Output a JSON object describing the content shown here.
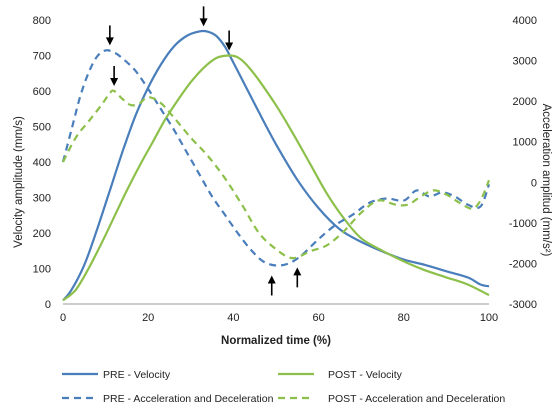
{
  "chart_data": {
    "type": "line",
    "xlabel": "Normalized time (%)",
    "ylabel_left": "Velocity amplitude (mm/s)",
    "ylabel_right": "Acceleration amplitud (mm/s²)",
    "x_ticks": [
      "0",
      "20",
      "40",
      "60",
      "80",
      "100"
    ],
    "y_left_ticks": [
      "0",
      "100",
      "200",
      "300",
      "400",
      "500",
      "600",
      "700",
      "800"
    ],
    "y_right_ticks": [
      "-3000",
      "-2000",
      "-1000",
      "0",
      "1000",
      "2000",
      "3000",
      "4000"
    ],
    "xlim": [
      0,
      100
    ],
    "ylim_left": [
      0,
      800
    ],
    "ylim_right": [
      -3000,
      4000
    ],
    "grid": false,
    "legend_position": "bottom",
    "colors": {
      "pre": "#4a7ebb",
      "post": "#8dc04a"
    },
    "series": [
      {
        "name": "PRE - Velocity",
        "axis": "left",
        "style": "solid",
        "color": "#4a7ebb",
        "x": [
          0,
          2,
          5,
          8,
          11,
          14,
          17,
          20,
          23,
          26,
          29,
          32,
          34,
          36,
          38,
          40,
          43,
          46,
          50,
          55,
          60,
          65,
          70,
          75,
          80,
          85,
          90,
          95,
          98,
          100
        ],
        "y": [
          10,
          40,
          110,
          210,
          320,
          430,
          530,
          610,
          675,
          725,
          755,
          768,
          767,
          755,
          725,
          680,
          610,
          540,
          450,
          350,
          270,
          210,
          175,
          148,
          125,
          110,
          92,
          75,
          55,
          50
        ]
      },
      {
        "name": "POST - Velocity",
        "axis": "left",
        "style": "solid",
        "color": "#8dc04a",
        "x": [
          0,
          3,
          6,
          9,
          12,
          15,
          18,
          21,
          24,
          27,
          30,
          33,
          36,
          39,
          41,
          43,
          46,
          50,
          54,
          58,
          62,
          66,
          70,
          75,
          80,
          85,
          90,
          95,
          100
        ],
        "y": [
          10,
          40,
          100,
          170,
          245,
          320,
          390,
          455,
          520,
          575,
          625,
          665,
          693,
          700,
          695,
          675,
          630,
          560,
          480,
          395,
          310,
          240,
          185,
          150,
          120,
          95,
          75,
          55,
          25
        ]
      },
      {
        "name": "PRE - Acceleration and Deceleration",
        "axis": "right",
        "style": "dashed",
        "color": "#4a7ebb",
        "x": [
          0,
          2,
          4,
          6,
          8,
          10,
          12,
          14,
          17,
          20,
          23,
          26,
          29,
          32,
          35,
          38,
          41,
          44,
          47,
          50,
          53,
          56,
          60,
          64,
          68,
          72,
          76,
          80,
          83,
          86,
          89,
          92,
          95,
          98,
          100
        ],
        "y": [
          500,
          1300,
          2100,
          2700,
          3100,
          3250,
          3200,
          3050,
          2750,
          2300,
          1800,
          1300,
          750,
          200,
          -350,
          -800,
          -1250,
          -1650,
          -1950,
          -2050,
          -2000,
          -1800,
          -1400,
          -1050,
          -800,
          -500,
          -400,
          -450,
          -200,
          -350,
          -250,
          -350,
          -550,
          -600,
          -50
        ]
      },
      {
        "name": "POST - Acceleration and Deceleration",
        "axis": "right",
        "style": "dashed",
        "color": "#8dc04a",
        "x": [
          0,
          3,
          6,
          9,
          11,
          12,
          14,
          16,
          18,
          20,
          23,
          26,
          30,
          34,
          38,
          42,
          46,
          50,
          53,
          55,
          58,
          62,
          66,
          70,
          74,
          78,
          81,
          84,
          87,
          90,
          93,
          96,
          98,
          100
        ],
        "y": [
          500,
          1100,
          1500,
          1900,
          2200,
          2250,
          2050,
          1900,
          1950,
          2100,
          1950,
          1600,
          1100,
          650,
          100,
          -550,
          -1250,
          -1650,
          -1850,
          -1850,
          -1700,
          -1550,
          -1200,
          -750,
          -450,
          -550,
          -550,
          -350,
          -200,
          -300,
          -500,
          -650,
          -450,
          50
        ]
      }
    ],
    "annotations": [
      {
        "type": "arrow-down",
        "series": "PRE - Acceleration and Deceleration",
        "x": 11,
        "y": 3250,
        "axis": "right"
      },
      {
        "type": "arrow-down",
        "series": "POST - Acceleration and Deceleration",
        "x": 12,
        "y": 2250,
        "axis": "right"
      },
      {
        "type": "arrow-down",
        "series": "PRE - Velocity",
        "x": 33,
        "y": 768,
        "axis": "left"
      },
      {
        "type": "arrow-down",
        "series": "POST - Velocity",
        "x": 39,
        "y": 700,
        "axis": "left"
      },
      {
        "type": "arrow-up",
        "series": "PRE - Acceleration and Deceleration",
        "x": 49,
        "y": -2050,
        "axis": "right"
      },
      {
        "type": "arrow-up",
        "series": "POST - Acceleration and Deceleration",
        "x": 55,
        "y": -1850,
        "axis": "right"
      }
    ]
  }
}
